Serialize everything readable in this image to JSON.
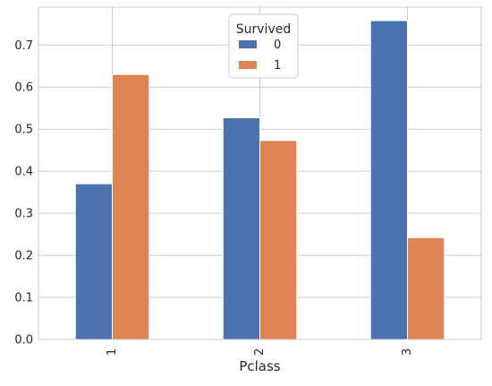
{
  "chart_data": {
    "type": "bar",
    "title": "",
    "xlabel": "Pclass",
    "ylabel": "",
    "categories": [
      "1",
      "2",
      "3"
    ],
    "ylim": [
      0,
      0.79
    ],
    "yticks": [
      0.0,
      0.1,
      0.2,
      0.3,
      0.4,
      0.5,
      0.6,
      0.7
    ],
    "ytick_labels": [
      "0.0",
      "0.1",
      "0.2",
      "0.3",
      "0.4",
      "0.5",
      "0.6",
      "0.7"
    ],
    "grid": true,
    "legend": {
      "title": "Survived",
      "placement": "top-center"
    },
    "series": [
      {
        "name": "0",
        "color": "#4c72b0",
        "values": [
          0.37,
          0.527,
          0.758
        ]
      },
      {
        "name": "1",
        "color": "#dd8452",
        "values": [
          0.63,
          0.473,
          0.242
        ]
      }
    ]
  }
}
